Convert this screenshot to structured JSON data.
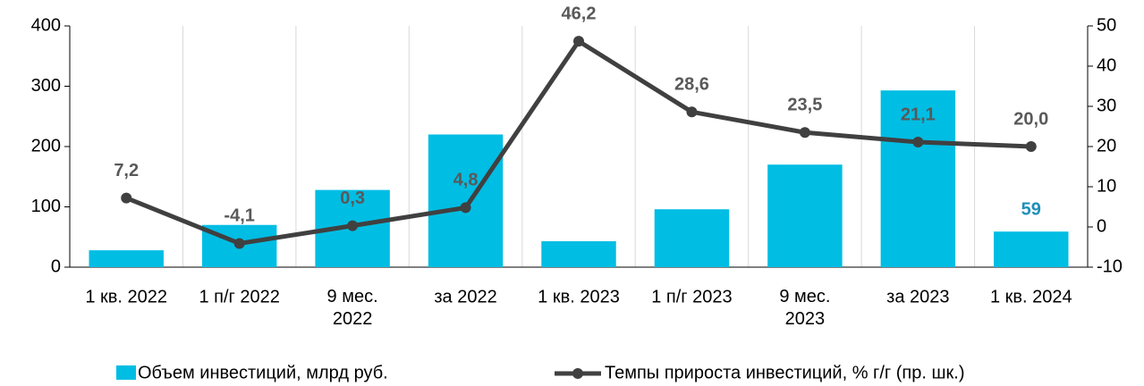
{
  "chart_data": {
    "type": "bar_line",
    "categories": [
      "1 кв. 2022",
      "1 п/г 2022",
      "9 мес.\n2022",
      "за 2022",
      "1 кв. 2023",
      "1 п/г 2023",
      "9 мес.\n2023",
      "за 2023",
      "1 кв. 2024"
    ],
    "series": [
      {
        "name": "Объем инвестиций, млрд руб.",
        "color": "#00bde3",
        "kind": "bar",
        "axis": "y",
        "values": [
          28,
          70,
          128,
          220,
          43,
          96,
          170,
          293,
          59
        ],
        "value_labels": [
          null,
          null,
          null,
          null,
          null,
          null,
          null,
          null,
          "59"
        ],
        "label_color": "#1f8fb8"
      },
      {
        "name": "Темпы прироста инвестиций, % г/г (пр. шк.)",
        "color": "#404040",
        "kind": "line",
        "axis": "y2",
        "values": [
          7.2,
          -4.1,
          0.3,
          4.8,
          46.2,
          28.6,
          23.5,
          21.1,
          20.0
        ],
        "value_labels": [
          "7,2",
          "-4,1",
          "0,3",
          "4,8",
          "46,2",
          "28,6",
          "23,5",
          "21,1",
          "20,0"
        ],
        "label_color": "#595959"
      }
    ],
    "ylim": [
      0,
      400
    ],
    "yticks": [
      0,
      100,
      200,
      300,
      400
    ],
    "y2lim": [
      -10,
      50
    ],
    "y2ticks": [
      -10,
      0,
      10,
      20,
      30,
      40,
      50
    ],
    "grid": "vertical",
    "legend": "bottom"
  }
}
